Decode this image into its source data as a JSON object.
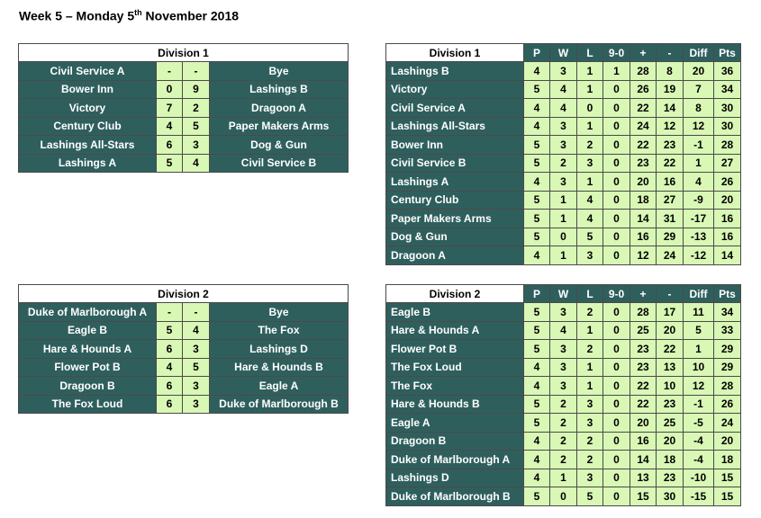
{
  "title": {
    "prefix": "Week 5 – Monday 5",
    "sup": "th",
    "suffix": " November 2018"
  },
  "fixtures": [
    {
      "heading": "Division 1",
      "rows": [
        {
          "home": "Civil Service A",
          "hs": "-",
          "as": "-",
          "away": "Bye"
        },
        {
          "home": "Bower Inn",
          "hs": "0",
          "as": "9",
          "away": "Lashings B"
        },
        {
          "home": "Victory",
          "hs": "7",
          "as": "2",
          "away": "Dragoon A"
        },
        {
          "home": "Century Club",
          "hs": "4",
          "as": "5",
          "away": "Paper Makers Arms"
        },
        {
          "home": "Lashings All-Stars",
          "hs": "6",
          "as": "3",
          "away": "Dog & Gun"
        },
        {
          "home": "Lashings A",
          "hs": "5",
          "as": "4",
          "away": "Civil Service B"
        }
      ]
    },
    {
      "heading": "Division 2",
      "rows": [
        {
          "home": "Duke of Marlborough A",
          "hs": "-",
          "as": "-",
          "away": "Bye"
        },
        {
          "home": "Eagle B",
          "hs": "5",
          "as": "4",
          "away": "The Fox"
        },
        {
          "home": "Hare & Hounds A",
          "hs": "6",
          "as": "3",
          "away": "Lashings D"
        },
        {
          "home": "Flower Pot B",
          "hs": "4",
          "as": "5",
          "away": "Hare & Hounds B"
        },
        {
          "home": "Dragoon B",
          "hs": "6",
          "as": "3",
          "away": "Eagle A"
        },
        {
          "home": "The Fox Loud",
          "hs": "6",
          "as": "3",
          "away": "Duke of Marlborough B"
        }
      ]
    }
  ],
  "standings": [
    {
      "heading": "Division 1",
      "columns": [
        "P",
        "W",
        "L",
        "9-0",
        "+",
        "-",
        "Diff",
        "Pts"
      ],
      "rows": [
        [
          "Lashings B",
          "4",
          "3",
          "1",
          "1",
          "28",
          "8",
          "20",
          "36"
        ],
        [
          "Victory",
          "5",
          "4",
          "1",
          "0",
          "26",
          "19",
          "7",
          "34"
        ],
        [
          "Civil Service A",
          "4",
          "4",
          "0",
          "0",
          "22",
          "14",
          "8",
          "30"
        ],
        [
          "Lashings All-Stars",
          "4",
          "3",
          "1",
          "0",
          "24",
          "12",
          "12",
          "30"
        ],
        [
          "Bower Inn",
          "5",
          "3",
          "2",
          "0",
          "22",
          "23",
          "-1",
          "28"
        ],
        [
          "Civil Service B",
          "5",
          "2",
          "3",
          "0",
          "23",
          "22",
          "1",
          "27"
        ],
        [
          "Lashings A",
          "4",
          "3",
          "1",
          "0",
          "20",
          "16",
          "4",
          "26"
        ],
        [
          "Century Club",
          "5",
          "1",
          "4",
          "0",
          "18",
          "27",
          "-9",
          "20"
        ],
        [
          "Paper Makers Arms",
          "5",
          "1",
          "4",
          "0",
          "14",
          "31",
          "-17",
          "16"
        ],
        [
          "Dog & Gun",
          "5",
          "0",
          "5",
          "0",
          "16",
          "29",
          "-13",
          "16"
        ],
        [
          "Dragoon A",
          "4",
          "1",
          "3",
          "0",
          "12",
          "24",
          "-12",
          "14"
        ]
      ]
    },
    {
      "heading": "Division 2",
      "columns": [
        "P",
        "W",
        "L",
        "9-0",
        "+",
        "-",
        "Diff",
        "Pts"
      ],
      "rows": [
        [
          "Eagle B",
          "5",
          "3",
          "2",
          "0",
          "28",
          "17",
          "11",
          "34"
        ],
        [
          "Hare & Hounds A",
          "5",
          "4",
          "1",
          "0",
          "25",
          "20",
          "5",
          "33"
        ],
        [
          "Flower Pot B",
          "5",
          "3",
          "2",
          "0",
          "23",
          "22",
          "1",
          "29"
        ],
        [
          "The Fox Loud",
          "4",
          "3",
          "1",
          "0",
          "23",
          "13",
          "10",
          "29"
        ],
        [
          "The Fox",
          "4",
          "3",
          "1",
          "0",
          "22",
          "10",
          "12",
          "28"
        ],
        [
          "Hare & Hounds B",
          "5",
          "2",
          "3",
          "0",
          "22",
          "23",
          "-1",
          "26"
        ],
        [
          "Eagle A",
          "5",
          "2",
          "3",
          "0",
          "20",
          "25",
          "-5",
          "24"
        ],
        [
          "Dragoon B",
          "4",
          "2",
          "2",
          "0",
          "16",
          "20",
          "-4",
          "20"
        ],
        [
          "Duke of Marlborough A",
          "4",
          "2",
          "2",
          "0",
          "14",
          "18",
          "-4",
          "18"
        ],
        [
          "Lashings D",
          "4",
          "1",
          "3",
          "0",
          "13",
          "23",
          "-10",
          "15"
        ],
        [
          "Duke of Marlborough B",
          "5",
          "0",
          "5",
          "0",
          "15",
          "30",
          "-15",
          "15"
        ]
      ]
    }
  ],
  "colors": {
    "dark": "#2f5f5d",
    "light": "#d9f7b5"
  }
}
